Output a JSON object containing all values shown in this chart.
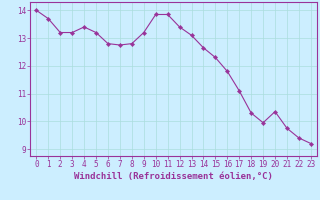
{
  "x": [
    0,
    1,
    2,
    3,
    4,
    5,
    6,
    7,
    8,
    9,
    10,
    11,
    12,
    13,
    14,
    15,
    16,
    17,
    18,
    19,
    20,
    21,
    22,
    23
  ],
  "y": [
    14.0,
    13.7,
    13.2,
    13.2,
    13.4,
    13.2,
    12.8,
    12.75,
    12.8,
    13.2,
    13.85,
    13.85,
    13.4,
    13.1,
    12.65,
    12.3,
    11.8,
    11.1,
    10.3,
    9.95,
    10.35,
    9.75,
    9.4,
    9.2
  ],
  "line_color": "#993399",
  "marker": "D",
  "marker_size": 2.2,
  "bg_color": "#cceeff",
  "grid_color": "#aadddd",
  "xlabel": "Windchill (Refroidissement éolien,°C)",
  "xlim": [
    -0.5,
    23.5
  ],
  "ylim": [
    8.75,
    14.3
  ],
  "yticks": [
    9,
    10,
    11,
    12,
    13,
    14
  ],
  "xticks": [
    0,
    1,
    2,
    3,
    4,
    5,
    6,
    7,
    8,
    9,
    10,
    11,
    12,
    13,
    14,
    15,
    16,
    17,
    18,
    19,
    20,
    21,
    22,
    23
  ],
  "tick_fontsize": 5.5,
  "xlabel_fontsize": 6.5,
  "label_color": "#993399",
  "tick_color": "#993399",
  "spine_color": "#993399",
  "linewidth": 0.8
}
